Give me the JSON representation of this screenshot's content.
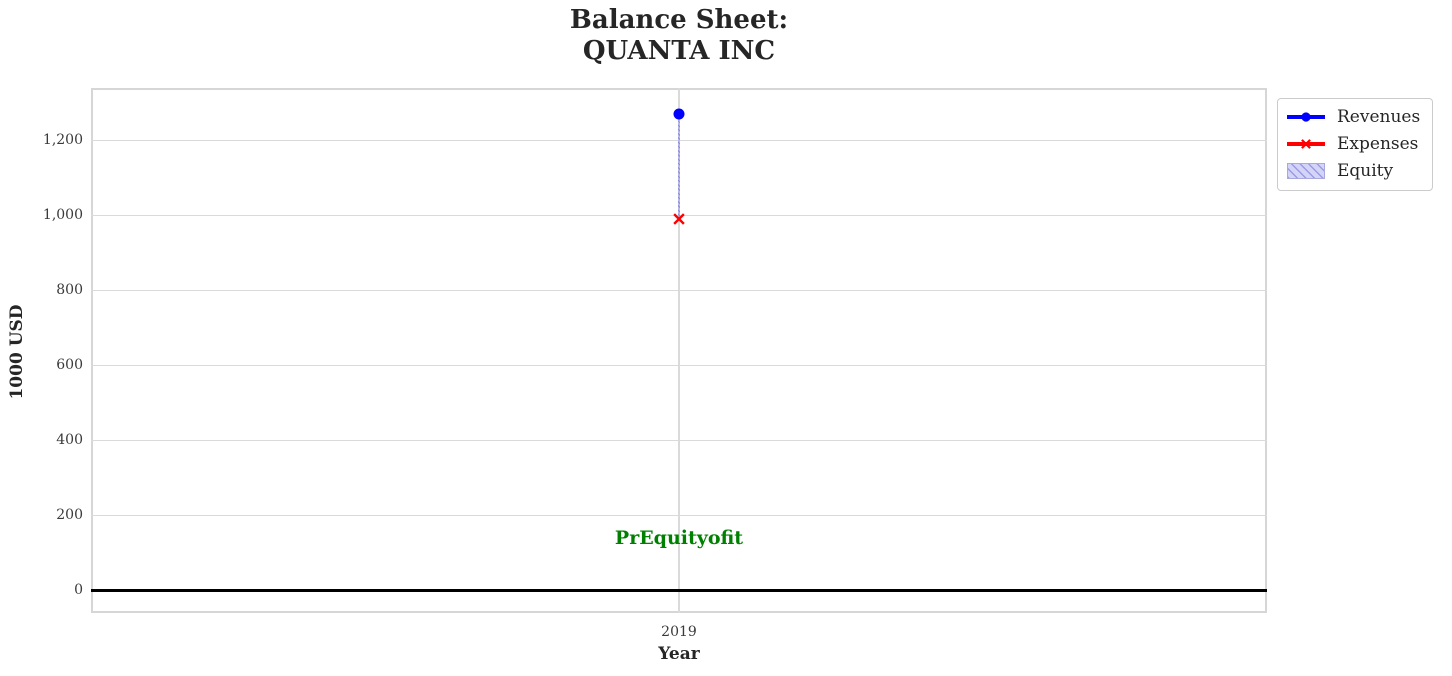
{
  "title": {
    "line1": "Balance Sheet:",
    "line2": "QUANTA INC"
  },
  "axes": {
    "xlabel": "Year",
    "ylabel": "1000 USD",
    "x_tick_labels": [
      "2019"
    ],
    "y_tick_labels": [
      "0",
      "200",
      "400",
      "600",
      "800",
      "1,000",
      "1,200"
    ]
  },
  "legend": {
    "items": [
      {
        "label": "Revenues",
        "marker": "circle",
        "color": "#0000ff"
      },
      {
        "label": "Expenses",
        "marker": "x",
        "color": "#ff0000"
      },
      {
        "label": "Equity",
        "marker": "hatched-patch",
        "fill": "#d4d4f8",
        "hatch": "#9b9be4"
      }
    ]
  },
  "annotation": {
    "text": "PrEquityofit",
    "color": "#008000"
  },
  "colors": {
    "revenues": "#0000ff",
    "expenses": "#ff0000",
    "equity_fill": "#d4d4f8",
    "equity_hatch": "#9b9be4",
    "grid": "#dadada",
    "zero_line": "#000000",
    "annotation": "#008000",
    "text": "#262626"
  },
  "chart_data": {
    "type": "line",
    "title": "Balance Sheet:\nQUANTA INC",
    "xlabel": "Year",
    "ylabel": "1000 USD",
    "x": [
      2019
    ],
    "series": [
      {
        "name": "Revenues",
        "values": [
          1270
        ],
        "color": "#0000ff",
        "marker": "circle",
        "style": "line"
      },
      {
        "name": "Expenses",
        "values": [
          990
        ],
        "color": "#ff0000",
        "marker": "x",
        "style": "line"
      },
      {
        "name": "Equity",
        "values": [
          280
        ],
        "render": "band-between-expenses-and-revenues",
        "band": [
          990,
          1270
        ],
        "style": "hatched-area"
      }
    ],
    "annotations": [
      {
        "text": "PrEquityofit",
        "x": 2019,
        "y": 140,
        "color": "#008000"
      }
    ],
    "ylim": [
      -60,
      1340
    ],
    "y_ticks": [
      0,
      200,
      400,
      600,
      800,
      1000,
      1200
    ],
    "y_tick_labels": [
      "0",
      "200",
      "400",
      "600",
      "800",
      "1,000",
      "1,200"
    ],
    "x_ticks": [
      2019
    ],
    "grid": true,
    "zero_line": true,
    "legend_position": "outside-upper-right"
  }
}
